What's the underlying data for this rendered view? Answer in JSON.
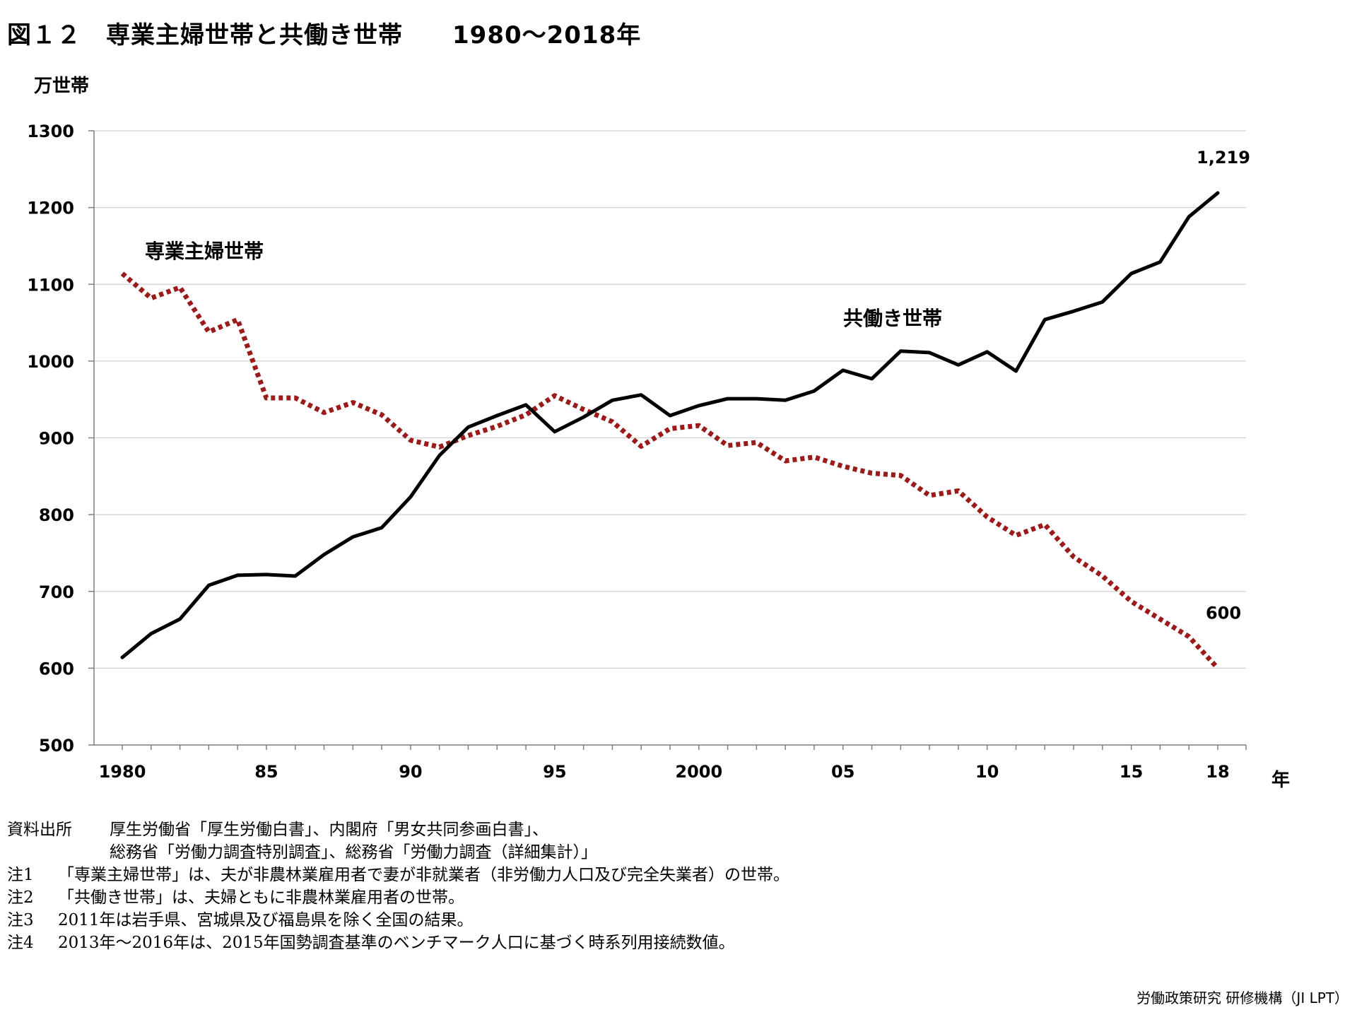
{
  "header": {
    "title": "図１２　専業主婦世帯と共働き世帯　　1980～2018年"
  },
  "chart_data": {
    "type": "line",
    "title": "図１２　専業主婦世帯と共働き世帯　　1980～2018年",
    "ylabel": "万世帯",
    "xlabel": "年",
    "ylim": [
      500,
      1300
    ],
    "yticks": [
      500,
      600,
      700,
      800,
      900,
      1000,
      1100,
      1200,
      1300
    ],
    "xlim": [
      1980,
      2018
    ],
    "xticks": [
      {
        "value": 1980,
        "label": "1980"
      },
      {
        "value": 1985,
        "label": "85"
      },
      {
        "value": 1990,
        "label": "90"
      },
      {
        "value": 1995,
        "label": "95"
      },
      {
        "value": 2000,
        "label": "2000"
      },
      {
        "value": 2005,
        "label": "05"
      },
      {
        "value": 2010,
        "label": "10"
      },
      {
        "value": 2015,
        "label": "15"
      },
      {
        "value": 2018,
        "label": "18"
      }
    ],
    "grid": "horizontal",
    "x": [
      1980,
      1981,
      1982,
      1983,
      1984,
      1985,
      1986,
      1987,
      1988,
      1989,
      1990,
      1991,
      1992,
      1993,
      1994,
      1995,
      1996,
      1997,
      1998,
      1999,
      2000,
      2001,
      2002,
      2003,
      2004,
      2005,
      2006,
      2007,
      2008,
      2009,
      2010,
      2011,
      2012,
      2013,
      2014,
      2015,
      2016,
      2017,
      2018
    ],
    "series": [
      {
        "name": "専業主婦世帯",
        "color": "#9b1b1b",
        "style": "dotted",
        "values": [
          1114,
          1082,
          1096,
          1038,
          1054,
          952,
          952,
          933,
          946,
          930,
          897,
          888,
          903,
          915,
          930,
          955,
          937,
          921,
          889,
          912,
          916,
          890,
          894,
          870,
          875,
          863,
          854,
          851,
          825,
          831,
          797,
          773,
          787,
          745,
          720,
          687,
          664,
          641,
          600
        ],
        "end_label": "600"
      },
      {
        "name": "共働き世帯",
        "color": "#000000",
        "style": "solid",
        "values": [
          614,
          645,
          664,
          708,
          721,
          722,
          720,
          748,
          771,
          783,
          823,
          877,
          914,
          929,
          943,
          908,
          927,
          949,
          956,
          929,
          942,
          951,
          951,
          949,
          961,
          988,
          977,
          1013,
          1011,
          995,
          1012,
          987,
          1054,
          1065,
          1077,
          1114,
          1129,
          1188,
          1219
        ],
        "end_label": "1,219"
      }
    ]
  },
  "notes": {
    "source_label": "資料出所",
    "source_line1": "厚生労働省「厚生労働白書」、内閣府「男女共同参画白書」、",
    "source_line2": "総務省「労働力調査特別調査」、総務省「労働力調査（詳細集計）」",
    "items": [
      {
        "label": "注1",
        "text": "「専業主婦世帯」は、夫が非農林業雇用者で妻が非就業者（非労働力人口及び完全失業者）の世帯。"
      },
      {
        "label": "注2",
        "text": "「共働き世帯」は、夫婦ともに非農林業雇用者の世帯。"
      },
      {
        "label": "注3",
        "text": "2011年は岩手県、宮城県及び福島県を除く全国の結果。"
      },
      {
        "label": "注4",
        "text": "2013年～2016年は、2015年国勢調査基準のベンチマーク人口に基づく時系列用接続数値。"
      }
    ]
  },
  "footer": {
    "credit": "労働政策研究 研修機構（JI LPT）"
  }
}
